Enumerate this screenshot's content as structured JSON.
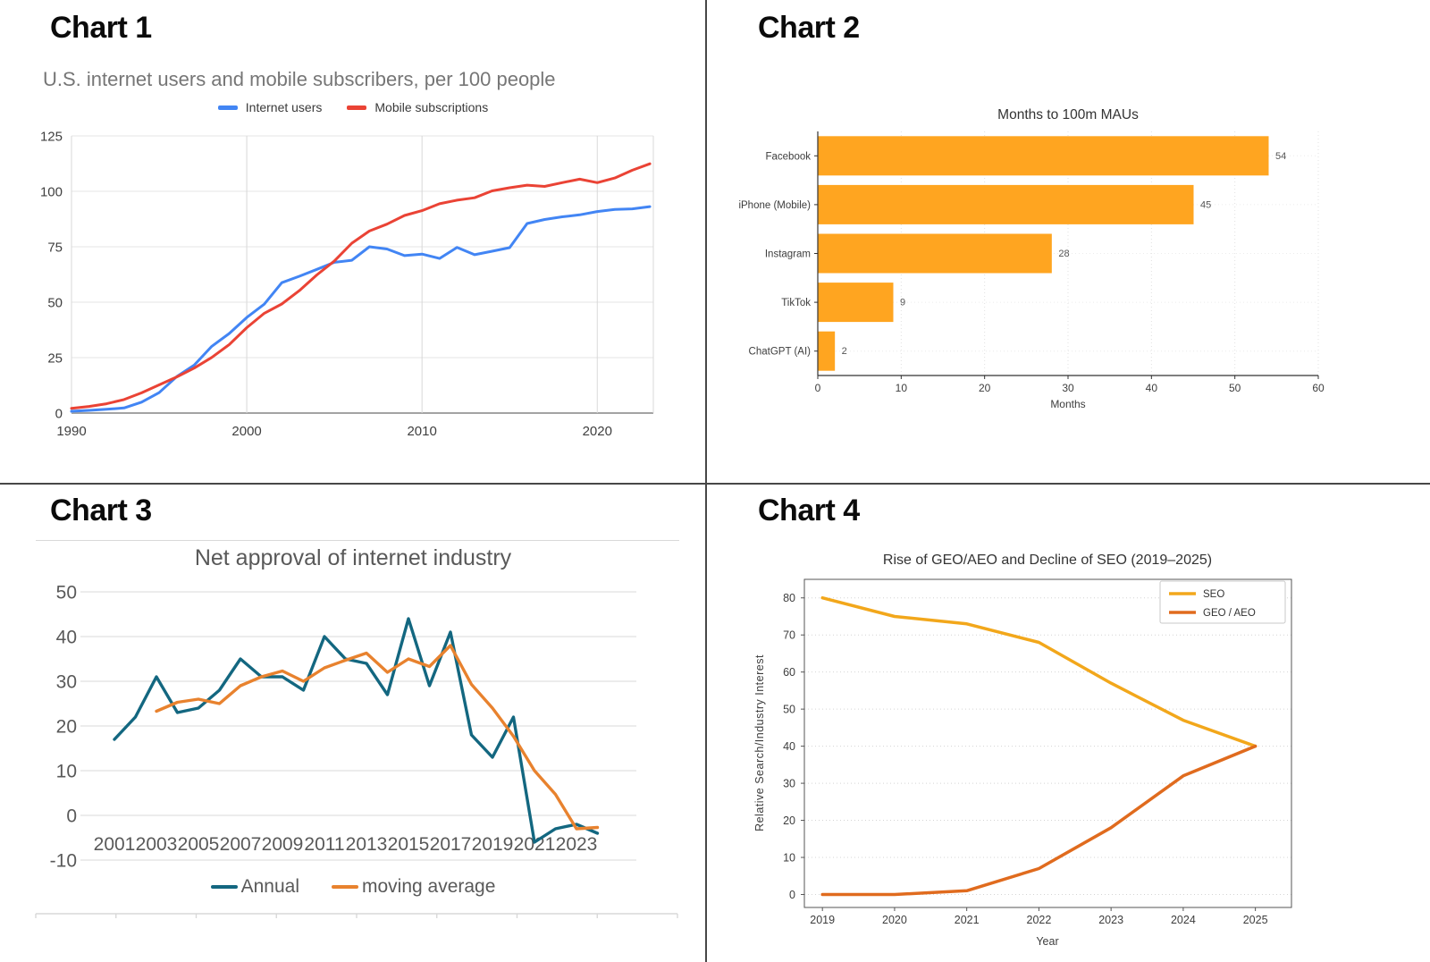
{
  "panels": [
    {
      "heading": "Chart 1"
    },
    {
      "heading": "Chart 2"
    },
    {
      "heading": "Chart 3"
    },
    {
      "heading": "Chart 4"
    }
  ],
  "chart_data": [
    {
      "id": "chart1",
      "type": "line",
      "title": "U.S. internet users and mobile subscribers, per 100 people",
      "x": [
        1990,
        1991,
        1992,
        1993,
        1994,
        1995,
        1996,
        1997,
        1998,
        1999,
        2000,
        2001,
        2002,
        2003,
        2004,
        2005,
        2006,
        2007,
        2008,
        2009,
        2010,
        2011,
        2012,
        2013,
        2014,
        2015,
        2016,
        2017,
        2018,
        2019,
        2020,
        2021,
        2022,
        2023
      ],
      "series": [
        {
          "name": "Internet users",
          "color": "#4285F4",
          "values": [
            0.8,
            1.2,
            1.7,
            2.3,
            4.9,
            9.2,
            16.4,
            21.6,
            30.1,
            35.9,
            43.1,
            49.1,
            58.8,
            61.7,
            64.8,
            68,
            68.9,
            75,
            74,
            71,
            71.7,
            69.7,
            74.7,
            71.4,
            73,
            74.6,
            85.5,
            87.3,
            88.5,
            89.4,
            90.9,
            91.8,
            92.1,
            93.1
          ]
        },
        {
          "name": "Mobile subscriptions",
          "color": "#EA4335",
          "values": [
            2.1,
            3,
            4.2,
            6.1,
            9.1,
            12.7,
            16.3,
            20.3,
            25.1,
            30.9,
            38.5,
            45,
            49.2,
            55.2,
            62.3,
            68.6,
            76.6,
            82.1,
            85.2,
            89.1,
            91.3,
            94.4,
            96,
            97.1,
            100.2,
            101.6,
            102.8,
            102.2,
            103.9,
            105.5,
            103.9,
            106,
            109.5,
            112.4
          ]
        }
      ],
      "xlim": [
        1990,
        2023
      ],
      "ylim": [
        0,
        125
      ],
      "xticks": [
        1990,
        2000,
        2010,
        2020
      ],
      "yticks": [
        0,
        25,
        50,
        75,
        100,
        125
      ],
      "legend_position": "top",
      "grid": "both"
    },
    {
      "id": "chart2",
      "type": "bar",
      "orientation": "horizontal",
      "title": "Months to 100m MAUs",
      "categories": [
        "Facebook",
        "iPhone (Mobile)",
        "Instagram",
        "TikTok",
        "ChatGPT (AI)"
      ],
      "values": [
        54,
        45,
        28,
        9,
        2
      ],
      "bar_color": "#FFA520",
      "xlabel": "Months",
      "xlim": [
        0,
        60
      ],
      "xticks": [
        0,
        10,
        20,
        30,
        40,
        50,
        60
      ],
      "value_labels": [
        54,
        45,
        28,
        9,
        2
      ],
      "grid": "dotted"
    },
    {
      "id": "chart3",
      "type": "line",
      "title": "Net approval of internet industry",
      "x": [
        2001,
        2002,
        2003,
        2004,
        2005,
        2006,
        2007,
        2008,
        2009,
        2010,
        2011,
        2012,
        2013,
        2014,
        2015,
        2016,
        2017,
        2018,
        2019,
        2020,
        2021,
        2022,
        2023,
        2024
      ],
      "series": [
        {
          "name": "Annual",
          "color": "#136780",
          "values": [
            17,
            22,
            31,
            23,
            24,
            28,
            35,
            31,
            31,
            28,
            40,
            35,
            34,
            27,
            44,
            29,
            41,
            18,
            13,
            22,
            -6,
            -3,
            -2,
            -4
          ]
        },
        {
          "name": "moving average",
          "color": "#E8822E",
          "values": [
            null,
            null,
            23.3,
            25.3,
            26,
            25,
            29,
            31,
            32.3,
            30,
            33,
            34.7,
            36.3,
            32,
            35,
            33.3,
            38,
            29.3,
            24,
            17.7,
            10,
            4.7,
            -3,
            -2.7
          ]
        }
      ],
      "xlim": [
        2001,
        2024
      ],
      "ylim": [
        -10,
        50
      ],
      "xticks": [
        2001,
        2003,
        2005,
        2007,
        2009,
        2011,
        2013,
        2015,
        2017,
        2019,
        2021,
        2023
      ],
      "yticks": [
        -10,
        0,
        10,
        20,
        30,
        40,
        50
      ],
      "legend_position": "bottom",
      "grid": "horizontal"
    },
    {
      "id": "chart4",
      "type": "line",
      "title": "Rise of GEO/AEO and Decline of SEO (2019–2025)",
      "x": [
        2019,
        2020,
        2021,
        2022,
        2023,
        2024,
        2025
      ],
      "series": [
        {
          "name": "SEO",
          "color": "#F2A71B",
          "values": [
            80,
            75,
            73,
            68,
            57,
            47,
            40
          ]
        },
        {
          "name": "GEO / AEO",
          "color": "#E06B1E",
          "values": [
            0,
            0,
            1,
            7,
            18,
            32,
            40
          ]
        }
      ],
      "xlabel": "Year",
      "ylabel": "Relative Search/Industry Interest",
      "xlim": [
        2019,
        2025
      ],
      "ylim": [
        0,
        80
      ],
      "xticks": [
        2019,
        2020,
        2021,
        2022,
        2023,
        2024,
        2025
      ],
      "yticks": [
        0,
        10,
        20,
        30,
        40,
        50,
        60,
        70,
        80
      ],
      "legend_position": "upper-right-box",
      "grid": "dotted"
    }
  ]
}
